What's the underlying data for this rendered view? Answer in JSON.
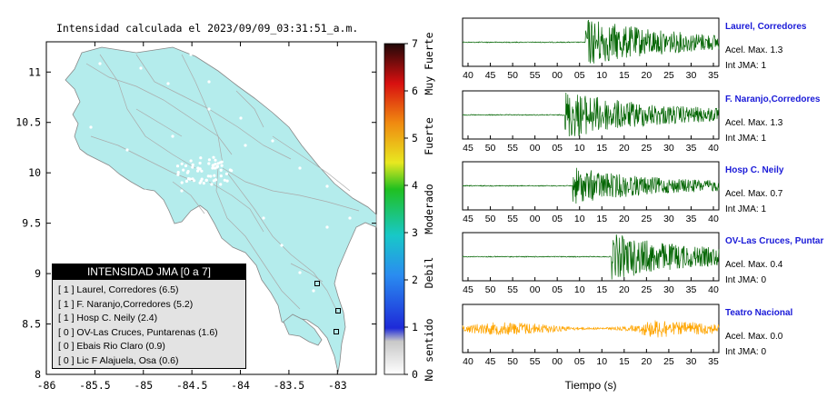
{
  "map": {
    "title": "Intensidad calculada el 2023/09/09_03:31:51_a.m.",
    "x_ticks": [
      "-86",
      "-85.5",
      "-85",
      "-84.5",
      "-84",
      "-83.5",
      "-83"
    ],
    "y_ticks": [
      "11",
      "10.5",
      "10",
      "9.5",
      "9",
      "8.5",
      "8"
    ],
    "land_color": "#b4ecec",
    "colorbar": {
      "ticks": [
        "0",
        "1",
        "2",
        "3",
        "4",
        "5",
        "6",
        "7"
      ],
      "labels": [
        "No sentido",
        "Debil",
        "Moderado",
        "Fuerte",
        "Muy Fuerte"
      ]
    },
    "legend": {
      "title": "INTENSIDAD JMA [0 a 7]",
      "items": [
        "[ 1 ]  Laurel, Corredores (6.5)",
        "[ 1 ]  F. Naranjo,Corredores (5.2)",
        "[ 1 ]  Hosp C. Neily (2.4)",
        "[ 0 ]  OV-Las Cruces, Puntarenas (1.6)",
        "[ 0 ]  Ebais Rio Claro (0.9)",
        "[ 0 ]  Lic F Alajuela, Osa (0.6)"
      ]
    }
  },
  "waveforms": {
    "xlabel": "Tiempo (s)",
    "panels": [
      {
        "station": "Laurel, Corredores",
        "acel": "Acel. Max. 1.3",
        "jma": "Int JMA: 1",
        "ticks": [
          "40",
          "45",
          "50",
          "55",
          "00",
          "05",
          "10",
          "15",
          "20",
          "25",
          "30",
          "35"
        ],
        "color": "#006400",
        "onset": 0.48,
        "amp": 1.0
      },
      {
        "station": "F. Naranjo,Corredores",
        "acel": "Acel. Max. 1.3",
        "jma": "Int JMA: 1",
        "ticks": [
          "45",
          "50",
          "55",
          "00",
          "05",
          "10",
          "15",
          "20",
          "25",
          "30",
          "35",
          "40"
        ],
        "color": "#006400",
        "onset": 0.4,
        "amp": 1.0
      },
      {
        "station": "Hosp C. Neily",
        "acel": "Acel. Max. 0.7",
        "jma": "Int JMA: 1",
        "ticks": [
          "45",
          "50",
          "55",
          "00",
          "05",
          "10",
          "15",
          "20",
          "25",
          "30",
          "35",
          "40"
        ],
        "color": "#006400",
        "onset": 0.43,
        "amp": 0.75
      },
      {
        "station": "OV-Las Cruces, Puntar",
        "acel": "Acel. Max. 0.4",
        "jma": "Int JMA: 0",
        "ticks": [
          "45",
          "50",
          "55",
          "00",
          "05",
          "10",
          "15",
          "20",
          "25",
          "30",
          "35",
          "40"
        ],
        "color": "#006400",
        "onset": 0.58,
        "amp": 0.95
      },
      {
        "station": "Teatro Nacional",
        "acel": "Acel. Max. 0.0",
        "jma": "Int JMA: 0",
        "ticks": [
          "40",
          "45",
          "50",
          "55",
          "00",
          "05",
          "10",
          "15",
          "20",
          "25",
          "30",
          "35"
        ],
        "color": "#ffa500",
        "onset": 0.0,
        "amp": 0.55
      }
    ]
  }
}
